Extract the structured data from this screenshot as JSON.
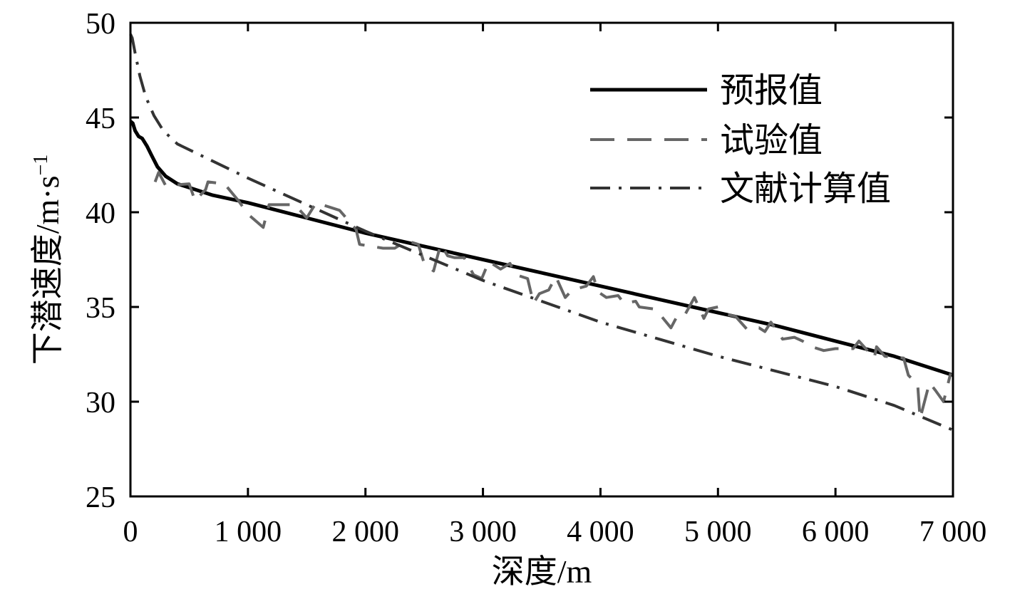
{
  "chart_data": {
    "type": "line",
    "title": "",
    "xlabel": "深度/m",
    "ylabel": "下潜速度/m·s",
    "ylabel_exponent": "−1",
    "xlim": [
      0,
      7000
    ],
    "ylim": [
      25,
      50
    ],
    "x_ticks": [
      0,
      1000,
      2000,
      3000,
      4000,
      5000,
      6000,
      7000
    ],
    "x_tick_labels": [
      "0",
      "1 000",
      "2 000",
      "3 000",
      "4 000",
      "5 000",
      "6 000",
      "7 000"
    ],
    "y_ticks": [
      25,
      30,
      35,
      40,
      45,
      50
    ],
    "y_tick_labels": [
      "25",
      "30",
      "35",
      "40",
      "45",
      "50"
    ],
    "grid": false,
    "legend_position": "top-right",
    "series": [
      {
        "name": "预报值",
        "color": "#000000",
        "dash": "solid",
        "x": [
          0,
          20,
          40,
          70,
          100,
          140,
          180,
          230,
          300,
          400,
          500,
          700,
          1000,
          1500,
          2000,
          2500,
          3000,
          3500,
          4000,
          4500,
          5000,
          5500,
          6000,
          6500,
          7000
        ],
        "y": [
          44.8,
          44.7,
          44.3,
          44.0,
          43.9,
          43.5,
          43.0,
          42.4,
          41.9,
          41.5,
          41.3,
          40.9,
          40.5,
          39.7,
          38.9,
          38.2,
          37.5,
          36.8,
          36.1,
          35.4,
          34.7,
          34.0,
          33.2,
          32.4,
          31.4
        ]
      },
      {
        "name": "试验值",
        "color": "#666666",
        "dash": "dashed",
        "x": [
          210,
          240,
          300,
          500,
          550,
          640,
          660,
          800,
          920,
          1000,
          1130,
          1180,
          1400,
          1500,
          1580,
          1780,
          1920,
          1950,
          2050,
          2150,
          2250,
          2350,
          2450,
          2500,
          2580,
          2640,
          2700,
          2760,
          2840,
          2920,
          2990,
          3050,
          3150,
          3230,
          3280,
          3380,
          3430,
          3480,
          3560,
          3620,
          3700,
          3760,
          3880,
          3940,
          3980,
          4050,
          4150,
          4200,
          4300,
          4330,
          4450,
          4480,
          4600,
          4660,
          4720,
          4800,
          4880,
          4920,
          5000,
          5080,
          5150,
          5250,
          5350,
          5400,
          5450,
          5550,
          5650,
          5720,
          5800,
          5900,
          6000,
          6150,
          6200,
          6330,
          6350,
          6420,
          6580,
          6620,
          6700,
          6720,
          6800,
          6850,
          6920,
          6980
        ],
        "y": [
          41.6,
          42.1,
          41.4,
          41.5,
          40.6,
          41.2,
          41.6,
          41.5,
          40.6,
          39.9,
          39.2,
          40.4,
          40.4,
          39.7,
          40.5,
          40.1,
          39.1,
          38.3,
          38.2,
          38.1,
          38.1,
          38.5,
          38.3,
          37.3,
          36.9,
          38.3,
          37.7,
          37.6,
          37.6,
          36.7,
          36.5,
          37.4,
          37.0,
          37.3,
          36.7,
          36.5,
          35.2,
          35.7,
          35.9,
          36.6,
          35.5,
          35.9,
          36.1,
          36.6,
          35.8,
          35.5,
          35.6,
          35.2,
          35.3,
          35.0,
          34.9,
          34.8,
          33.9,
          34.6,
          34.6,
          35.5,
          34.4,
          34.9,
          35.0,
          34.6,
          34.5,
          33.8,
          33.9,
          33.7,
          34.2,
          33.3,
          33.4,
          33.2,
          32.9,
          32.7,
          32.8,
          32.8,
          33.2,
          32.3,
          32.9,
          32.4,
          32.3,
          31.4,
          30.9,
          29.1,
          31.0,
          30.6,
          30.0,
          31.5
        ]
      },
      {
        "name": "文献计算值",
        "color": "#333333",
        "dash": "dashdot",
        "x": [
          0,
          15,
          40,
          80,
          130,
          200,
          280,
          400,
          700,
          1000,
          1500,
          2000,
          2500,
          3000,
          3500,
          4000,
          4500,
          5000,
          5500,
          6000,
          6500,
          7000
        ],
        "y": [
          49.4,
          49.2,
          48.4,
          47.2,
          46.1,
          45.1,
          44.3,
          43.6,
          42.7,
          41.8,
          40.4,
          39.0,
          37.7,
          36.4,
          35.3,
          34.2,
          33.3,
          32.4,
          31.6,
          30.8,
          29.8,
          28.5
        ]
      }
    ]
  }
}
